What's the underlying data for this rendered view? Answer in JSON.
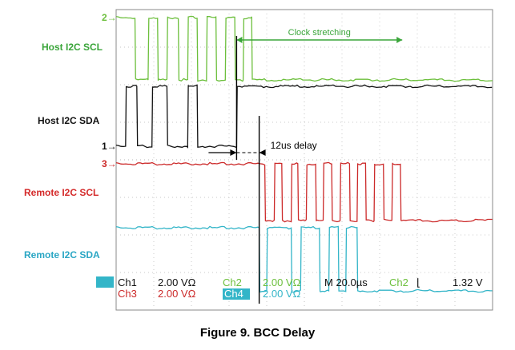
{
  "chart_data": {
    "type": "line",
    "title": "",
    "xlabel": "",
    "ylabel": "",
    "x_unit": "µs",
    "xlim": [
      -64,
      136
    ],
    "grid": true,
    "series": [
      {
        "name": "Host I2C SCL",
        "channel_marker": "2",
        "color": "#6cbf3c",
        "low_level": 0,
        "high_level": 1,
        "transitions_us": [
          -54,
          -47,
          -42,
          -37,
          -31,
          -26,
          -21,
          -16,
          -11,
          -6,
          -1,
          3.5,
          8
        ],
        "note": "Clock stretching"
      },
      {
        "name": "Host I2C SDA",
        "channel_marker": "1",
        "color": "#111111",
        "low_level": 0,
        "high_level": 1,
        "transitions_us": [
          -59,
          -53,
          -45,
          -37,
          -26,
          -21,
          0
        ]
      },
      {
        "name": "Remote I2C SCL",
        "channel_marker": "3",
        "color": "#cc2a2a",
        "low_level": 0,
        "high_level": 1,
        "transitions_us": [
          15,
          20,
          24,
          29,
          32.5,
          37,
          42,
          46,
          50.5,
          55,
          60,
          64,
          68.5,
          73,
          78,
          82.5,
          87
        ]
      },
      {
        "name": "Remote I2C SDA",
        "channel_marker": "",
        "color": "#33b5c8",
        "low_level": 0,
        "high_level": 1,
        "transitions_us": [
          12,
          16,
          29,
          34,
          44,
          49,
          54,
          58,
          64
        ]
      }
    ],
    "annotations": [
      {
        "text": "Clock stretching",
        "from_us": 0,
        "to_us": 88
      },
      {
        "text": "12us delay",
        "from_us": 0,
        "to_us": 12
      }
    ],
    "readout": {
      "ch1_label": "Ch1",
      "ch1_value": "2.00 VΩ",
      "ch2_label": "Ch2",
      "ch2_value": "2.00 VΩ",
      "ch3_label": "Ch3",
      "ch3_value": "2.00 VΩ",
      "ch4_label": "Ch4",
      "ch4_value": "2.00 VΩ",
      "timebase": "M 20.0µs",
      "trigger_channel": "Ch2",
      "trigger_slope": "⌊",
      "trigger_level": "1.32 V"
    }
  },
  "labels": {
    "host_scl": "Host I2C SCL",
    "host_sda": "Host I2C SDA",
    "remote_scl": "Remote I2C SCL",
    "remote_sda": "Remote I2C SDA"
  },
  "caption": "Figure 9. BCC Delay",
  "colors": {
    "grid": "#c8c8c8",
    "frame": "#888888",
    "arrow": "#000000"
  }
}
